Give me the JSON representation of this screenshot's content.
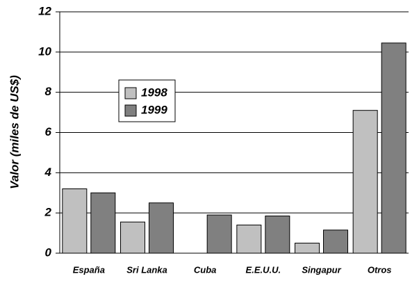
{
  "chart_data": {
    "type": "bar",
    "y_label": "Valor (miles de US$)",
    "categories": [
      "España",
      "Sri Lanka",
      "Cuba",
      "E.E.U.U.",
      "Singapur",
      "Otros"
    ],
    "series": [
      {
        "name": "1998",
        "color": "#c0c0c0",
        "values": [
          3.2,
          1.55,
          null,
          1.4,
          0.5,
          7.1
        ]
      },
      {
        "name": "1999",
        "color": "#808080",
        "values": [
          3.0,
          2.5,
          1.9,
          1.85,
          1.15,
          10.45
        ]
      }
    ],
    "ylim": [
      0,
      12
    ],
    "yticks": [
      0,
      2,
      4,
      6,
      8,
      10,
      12
    ],
    "grid": true
  }
}
